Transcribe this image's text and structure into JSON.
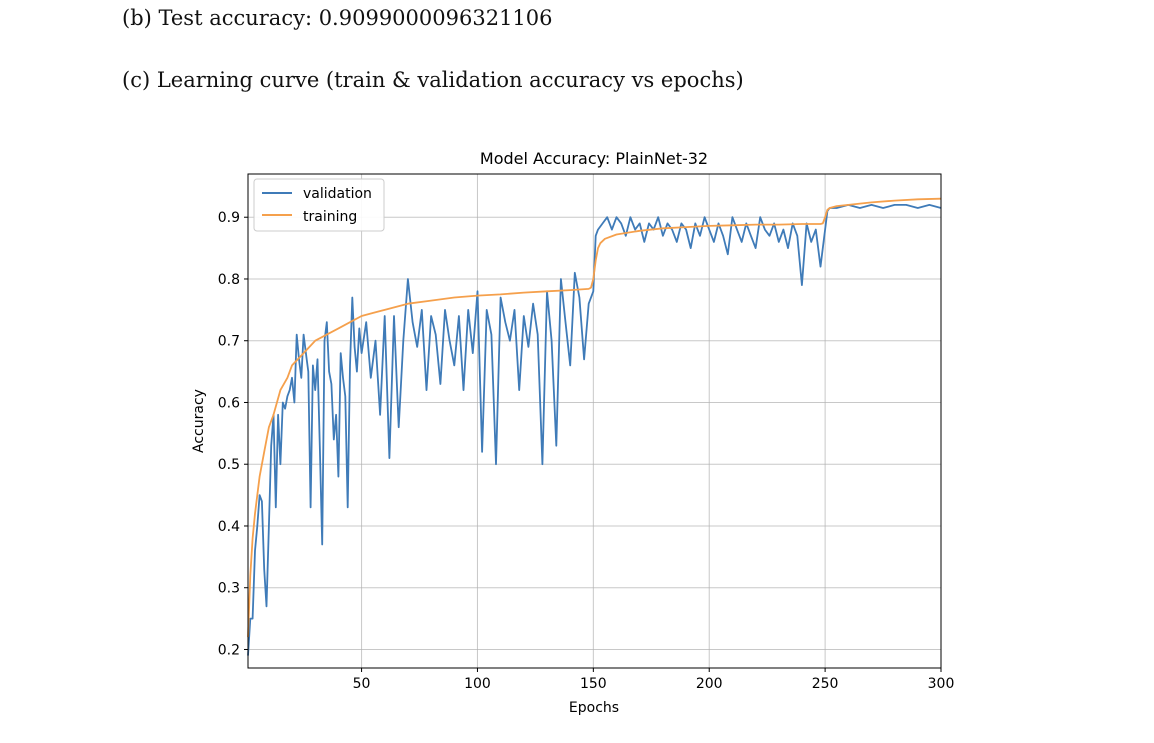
{
  "document": {
    "line_b": "(b) Test accuracy: 0.9099000096321106",
    "line_c": "(c) Learning curve (train & validation accuracy vs epochs)"
  },
  "chart_data": {
    "type": "line",
    "title": "Model Accuracy: PlainNet-32",
    "xlabel": "Epochs",
    "ylabel": "Accuracy",
    "xlim": [
      1,
      300
    ],
    "ylim": [
      0.17,
      0.97
    ],
    "xticks": [
      50,
      100,
      150,
      200,
      250,
      300
    ],
    "yticks": [
      0.2,
      0.3,
      0.4,
      0.5,
      0.6,
      0.7,
      0.8,
      0.9
    ],
    "grid": true,
    "legend_position": "upper-left",
    "colors": {
      "validation": "#3f7bb8",
      "training": "#f5a04c"
    },
    "series": [
      {
        "name": "validation",
        "x": [
          1,
          2,
          3,
          4,
          5,
          6,
          7,
          8,
          9,
          10,
          11,
          12,
          13,
          14,
          15,
          16,
          17,
          18,
          19,
          20,
          21,
          22,
          23,
          24,
          25,
          26,
          27,
          28,
          29,
          30,
          31,
          32,
          33,
          34,
          35,
          36,
          37,
          38,
          39,
          40,
          41,
          42,
          43,
          44,
          45,
          46,
          47,
          48,
          49,
          50,
          52,
          54,
          56,
          58,
          60,
          62,
          64,
          66,
          68,
          70,
          72,
          74,
          76,
          78,
          80,
          82,
          84,
          86,
          88,
          90,
          92,
          94,
          96,
          98,
          100,
          102,
          104,
          106,
          108,
          110,
          112,
          114,
          116,
          118,
          120,
          122,
          124,
          126,
          128,
          130,
          132,
          134,
          136,
          138,
          140,
          142,
          144,
          146,
          148,
          150,
          151,
          152,
          154,
          156,
          158,
          160,
          162,
          164,
          166,
          168,
          170,
          172,
          174,
          176,
          178,
          180,
          182,
          184,
          186,
          188,
          190,
          192,
          194,
          196,
          198,
          200,
          202,
          204,
          206,
          208,
          210,
          212,
          214,
          216,
          218,
          220,
          222,
          224,
          226,
          228,
          230,
          232,
          234,
          236,
          238,
          240,
          242,
          244,
          246,
          248,
          250,
          251,
          252,
          255,
          260,
          265,
          270,
          275,
          280,
          285,
          290,
          295,
          300
        ],
        "y": [
          0.19,
          0.25,
          0.25,
          0.36,
          0.4,
          0.45,
          0.44,
          0.33,
          0.27,
          0.4,
          0.53,
          0.58,
          0.43,
          0.58,
          0.5,
          0.6,
          0.59,
          0.61,
          0.62,
          0.64,
          0.6,
          0.71,
          0.67,
          0.64,
          0.71,
          0.68,
          0.65,
          0.43,
          0.66,
          0.62,
          0.67,
          0.53,
          0.37,
          0.7,
          0.73,
          0.65,
          0.63,
          0.54,
          0.58,
          0.48,
          0.68,
          0.64,
          0.61,
          0.43,
          0.66,
          0.77,
          0.69,
          0.65,
          0.72,
          0.68,
          0.73,
          0.64,
          0.7,
          0.58,
          0.74,
          0.51,
          0.74,
          0.56,
          0.7,
          0.8,
          0.73,
          0.69,
          0.75,
          0.62,
          0.74,
          0.71,
          0.63,
          0.75,
          0.7,
          0.66,
          0.74,
          0.62,
          0.75,
          0.68,
          0.78,
          0.52,
          0.75,
          0.71,
          0.5,
          0.77,
          0.73,
          0.7,
          0.75,
          0.62,
          0.74,
          0.69,
          0.76,
          0.71,
          0.5,
          0.78,
          0.7,
          0.53,
          0.8,
          0.73,
          0.66,
          0.81,
          0.77,
          0.67,
          0.76,
          0.78,
          0.87,
          0.88,
          0.89,
          0.9,
          0.88,
          0.9,
          0.89,
          0.87,
          0.9,
          0.88,
          0.89,
          0.86,
          0.89,
          0.88,
          0.9,
          0.87,
          0.89,
          0.88,
          0.86,
          0.89,
          0.88,
          0.85,
          0.89,
          0.87,
          0.9,
          0.88,
          0.86,
          0.89,
          0.87,
          0.84,
          0.9,
          0.88,
          0.86,
          0.89,
          0.87,
          0.85,
          0.9,
          0.88,
          0.87,
          0.89,
          0.86,
          0.88,
          0.85,
          0.89,
          0.87,
          0.79,
          0.89,
          0.86,
          0.88,
          0.82,
          0.88,
          0.91,
          0.915,
          0.915,
          0.92,
          0.915,
          0.92,
          0.915,
          0.92,
          0.92,
          0.915,
          0.92,
          0.915
        ]
      },
      {
        "name": "training",
        "x": [
          1,
          2,
          3,
          4,
          5,
          6,
          8,
          10,
          12,
          15,
          18,
          20,
          25,
          30,
          35,
          40,
          45,
          50,
          55,
          60,
          70,
          80,
          90,
          100,
          110,
          120,
          130,
          140,
          148,
          149,
          150,
          151,
          152,
          153,
          155,
          160,
          170,
          180,
          190,
          200,
          210,
          220,
          230,
          240,
          248,
          249,
          250,
          251,
          252,
          255,
          260,
          270,
          280,
          290,
          300
        ],
        "y": [
          0.22,
          0.32,
          0.38,
          0.42,
          0.45,
          0.48,
          0.52,
          0.56,
          0.58,
          0.62,
          0.64,
          0.66,
          0.68,
          0.7,
          0.71,
          0.72,
          0.73,
          0.74,
          0.745,
          0.75,
          0.76,
          0.765,
          0.77,
          0.773,
          0.775,
          0.778,
          0.78,
          0.782,
          0.784,
          0.786,
          0.8,
          0.83,
          0.85,
          0.858,
          0.865,
          0.872,
          0.878,
          0.882,
          0.884,
          0.886,
          0.887,
          0.888,
          0.888,
          0.889,
          0.889,
          0.89,
          0.9,
          0.912,
          0.915,
          0.918,
          0.92,
          0.924,
          0.927,
          0.929,
          0.93
        ]
      }
    ]
  }
}
